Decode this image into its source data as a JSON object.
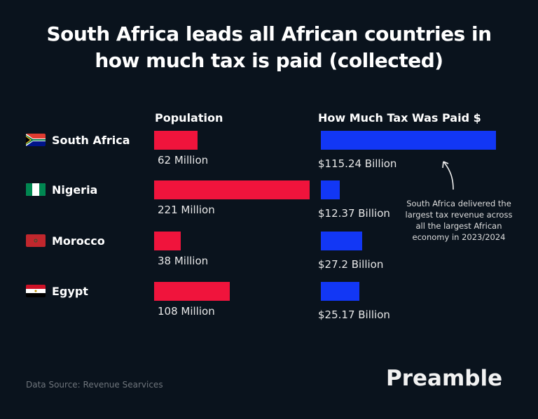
{
  "title_lines": [
    "South Africa leads all African countries in",
    "how much tax is paid (collected)"
  ],
  "chart_data": {
    "type": "bar",
    "orientation": "horizontal",
    "categories": [
      "South Africa",
      "Nigeria",
      "Morocco",
      "Egypt"
    ],
    "series": [
      {
        "name": "Population",
        "unit": "Million",
        "values": [
          62,
          221,
          38,
          108
        ],
        "labels": [
          "62 Million",
          "221 Million",
          "38 Million",
          "108 Million"
        ],
        "color": "#f0143c"
      },
      {
        "name": "How Much Tax Was Paid $",
        "unit": "Billion USD",
        "values": [
          115.24,
          12.37,
          27.2,
          25.17
        ],
        "labels": [
          "$115.24 Billion",
          "$12.37 Billion",
          "$27.2 Billion",
          "$25.17 Billion"
        ],
        "color": "#1237f5"
      }
    ],
    "annotation": "South Africa delivered the largest tax revenue across all the largest African economy in 2023/2024",
    "grid": false
  },
  "flags": [
    "south-africa-flag-icon",
    "nigeria-flag-icon",
    "morocco-flag-icon",
    "egypt-flag-icon"
  ],
  "footer": {
    "source": "Data Source: Revenue Searvices",
    "brand": "Preamble"
  }
}
